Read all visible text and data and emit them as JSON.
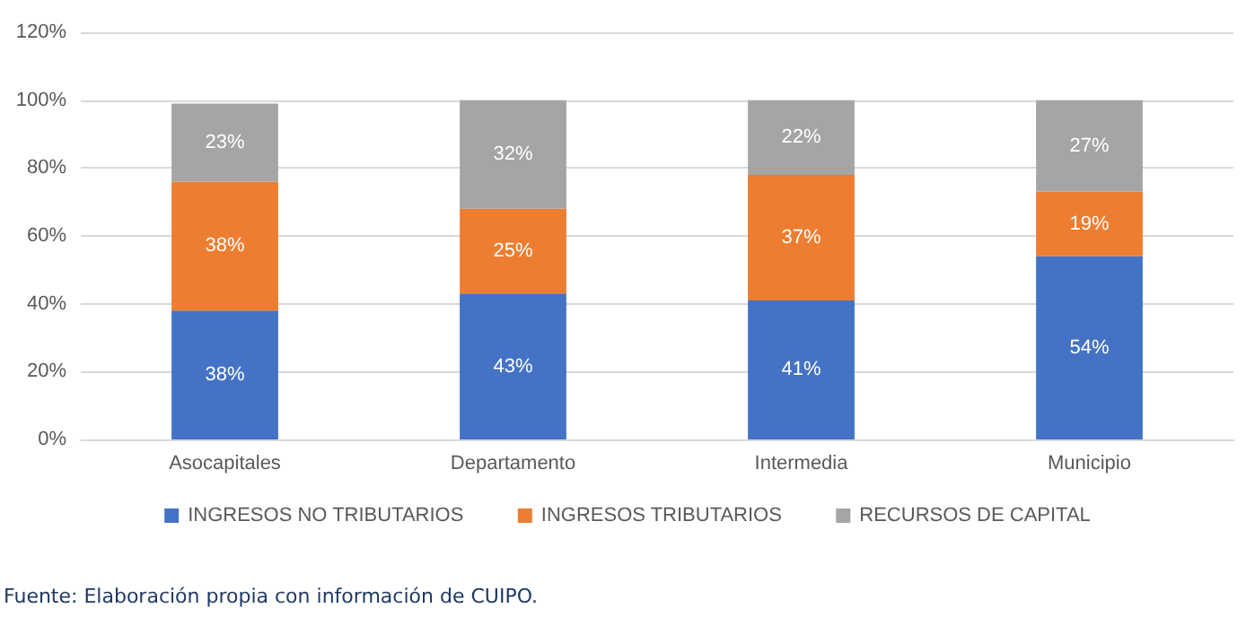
{
  "chart_data": {
    "type": "bar",
    "stacked": true,
    "categories": [
      "Asocapitales",
      "Departamento",
      "Intermedia",
      "Municipio"
    ],
    "series": [
      {
        "name": "INGRESOS NO TRIBUTARIOS",
        "color": "#4472c4",
        "values": [
          38,
          43,
          41,
          54
        ],
        "value_labels": [
          "38%",
          "43%",
          "41%",
          "54%"
        ]
      },
      {
        "name": "INGRESOS TRIBUTARIOS",
        "color": "#ed7d31",
        "values": [
          38,
          25,
          37,
          19
        ],
        "value_labels": [
          "38%",
          "25%",
          "37%",
          "19%"
        ]
      },
      {
        "name": "RECURSOS DE CAPITAL",
        "color": "#a5a5a5",
        "values": [
          23,
          32,
          22,
          27
        ],
        "value_labels": [
          "23%",
          "32%",
          "22%",
          "27%"
        ]
      }
    ],
    "ylim": [
      0,
      120
    ],
    "yticks": [
      {
        "value": 0,
        "label": "0%"
      },
      {
        "value": 20,
        "label": "20%"
      },
      {
        "value": 40,
        "label": "40%"
      },
      {
        "value": 60,
        "label": "60%"
      },
      {
        "value": 80,
        "label": "80%"
      },
      {
        "value": 100,
        "label": "100%"
      },
      {
        "value": 120,
        "label": "120%"
      }
    ],
    "grid": "y",
    "legend": "bottom",
    "annotations": [
      "Fuente: Elaboración propia con información de CUIPO."
    ]
  }
}
